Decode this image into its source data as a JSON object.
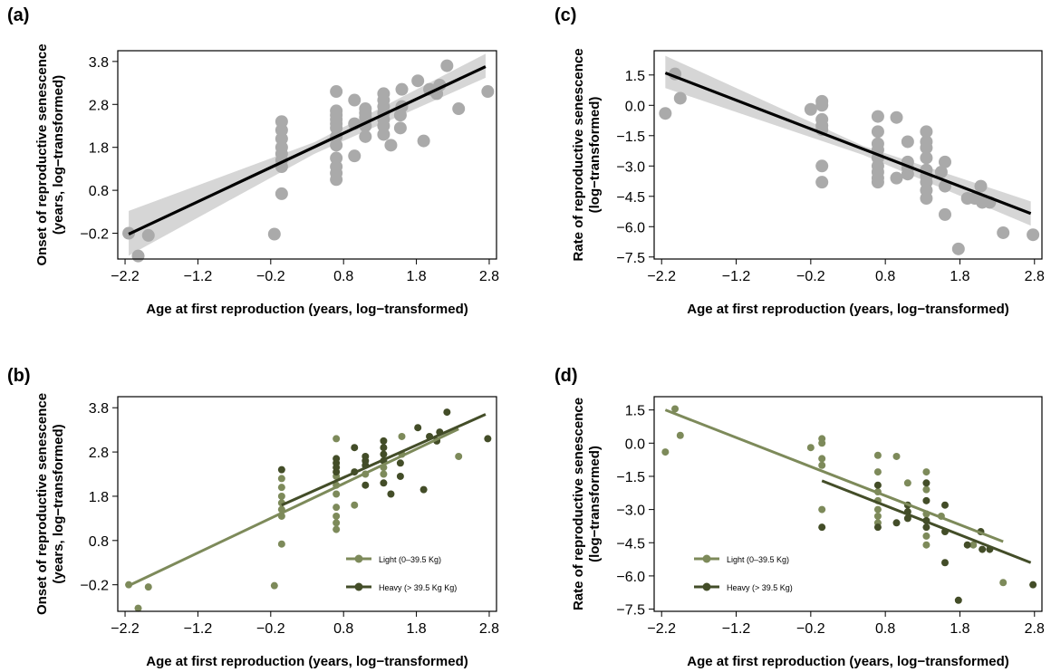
{
  "chart_data": [
    {
      "panel": "(a)",
      "type": "scatter",
      "xlabel": "Age at first reproduction (years, log−transformed)",
      "ylabel": [
        "Onset of reproductive senescence",
        "(years, log−transformed)"
      ],
      "xticks": [
        "−2.2",
        "−1.2",
        "−0.2",
        "0.8",
        "1.8",
        "2.8"
      ],
      "yticks": [
        "−0.2",
        "0.8",
        "1.8",
        "2.8",
        "3.8"
      ],
      "xlim": [
        -2.3,
        2.9
      ],
      "ylim": [
        -0.8,
        4.05
      ],
      "point_color": "#aaaaaa",
      "line_color": "#000000",
      "band_color": "#d6d6d6",
      "points": [
        [
          -2.15,
          -0.2
        ],
        [
          -2.02,
          -0.73
        ],
        [
          -1.88,
          -0.25
        ],
        [
          -0.15,
          -0.22
        ],
        [
          -0.05,
          0.72
        ],
        [
          -0.05,
          1.35
        ],
        [
          -0.05,
          1.5
        ],
        [
          -0.05,
          1.65
        ],
        [
          -0.05,
          1.8
        ],
        [
          -0.05,
          2.0
        ],
        [
          -0.05,
          2.2
        ],
        [
          -0.05,
          2.4
        ],
        [
          0.7,
          1.05
        ],
        [
          0.7,
          1.2
        ],
        [
          0.7,
          1.35
        ],
        [
          0.7,
          1.55
        ],
        [
          0.7,
          1.85
        ],
        [
          0.7,
          2.05
        ],
        [
          0.7,
          2.25
        ],
        [
          0.7,
          2.35
        ],
        [
          0.7,
          2.45
        ],
        [
          0.7,
          2.55
        ],
        [
          0.7,
          2.65
        ],
        [
          0.7,
          3.1
        ],
        [
          0.95,
          1.6
        ],
        [
          0.95,
          2.35
        ],
        [
          0.95,
          2.9
        ],
        [
          1.1,
          2.05
        ],
        [
          1.1,
          2.3
        ],
        [
          1.1,
          2.5
        ],
        [
          1.1,
          2.6
        ],
        [
          1.1,
          2.7
        ],
        [
          1.35,
          2.1
        ],
        [
          1.35,
          2.3
        ],
        [
          1.35,
          2.45
        ],
        [
          1.35,
          2.6
        ],
        [
          1.35,
          2.75
        ],
        [
          1.35,
          2.9
        ],
        [
          1.35,
          3.05
        ],
        [
          1.45,
          1.85
        ],
        [
          1.58,
          2.25
        ],
        [
          1.58,
          2.55
        ],
        [
          1.6,
          2.75
        ],
        [
          1.6,
          3.15
        ],
        [
          1.82,
          3.35
        ],
        [
          1.9,
          1.95
        ],
        [
          1.98,
          3.15
        ],
        [
          2.08,
          3.05
        ],
        [
          2.12,
          3.25
        ],
        [
          2.22,
          3.7
        ],
        [
          2.38,
          2.7
        ],
        [
          2.78,
          3.1
        ]
      ],
      "fit_line": [
        [
          -2.15,
          -0.22
        ],
        [
          2.75,
          3.68
        ]
      ],
      "ci_band": {
        "x": [
          -2.15,
          0.4,
          2.75
        ],
        "lower": [
          -0.72,
          1.65,
          3.42
        ],
        "upper": [
          0.32,
          1.92,
          3.98
        ]
      }
    },
    {
      "panel": "(b)",
      "type": "scatter",
      "xlabel": "Age at first reproduction (years, log−transformed)",
      "ylabel": [
        "Onset of reproductive senescence",
        "(years, log−transformed)"
      ],
      "xticks": [
        "−2.2",
        "−1.2",
        "−0.2",
        "0.8",
        "1.8",
        "2.8"
      ],
      "yticks": [
        "−0.2",
        "0.8",
        "1.8",
        "2.8",
        "3.8"
      ],
      "xlim": [
        -2.3,
        2.9
      ],
      "ylim": [
        -0.8,
        4.05
      ],
      "legend_position": "bottom-right",
      "series": [
        {
          "name": "Light (0–39.5 Kg)",
          "color": "#7d8a5a",
          "points": [
            [
              -2.15,
              -0.2
            ],
            [
              -2.02,
              -0.73
            ],
            [
              -1.88,
              -0.25
            ],
            [
              -0.15,
              -0.22
            ],
            [
              -0.05,
              0.72
            ],
            [
              -0.05,
              1.35
            ],
            [
              -0.05,
              1.5
            ],
            [
              -0.05,
              1.65
            ],
            [
              -0.05,
              1.8
            ],
            [
              -0.05,
              2.0
            ],
            [
              -0.05,
              2.2
            ],
            [
              0.7,
              1.05
            ],
            [
              0.7,
              1.2
            ],
            [
              0.7,
              1.35
            ],
            [
              0.7,
              1.55
            ],
            [
              0.7,
              1.85
            ],
            [
              0.7,
              2.05
            ],
            [
              0.7,
              2.25
            ],
            [
              0.7,
              3.1
            ],
            [
              0.95,
              1.6
            ],
            [
              1.1,
              2.3
            ],
            [
              1.35,
              2.3
            ],
            [
              1.35,
              2.45
            ],
            [
              1.6,
              2.75
            ],
            [
              1.6,
              3.15
            ],
            [
              2.38,
              2.7
            ]
          ],
          "fit_line": [
            [
              -2.15,
              -0.22
            ],
            [
              2.38,
              3.32
            ]
          ]
        },
        {
          "name": "Heavy (> 39.5 Kg Kg)",
          "color": "#434d28",
          "points": [
            [
              -0.05,
              2.4
            ],
            [
              0.7,
              2.35
            ],
            [
              0.7,
              2.45
            ],
            [
              0.7,
              2.55
            ],
            [
              0.7,
              2.65
            ],
            [
              0.95,
              2.35
            ],
            [
              0.95,
              2.9
            ],
            [
              1.1,
              2.05
            ],
            [
              1.1,
              2.5
            ],
            [
              1.1,
              2.6
            ],
            [
              1.1,
              2.7
            ],
            [
              1.35,
              2.1
            ],
            [
              1.35,
              2.6
            ],
            [
              1.35,
              2.75
            ],
            [
              1.35,
              2.9
            ],
            [
              1.35,
              3.05
            ],
            [
              1.45,
              1.85
            ],
            [
              1.58,
              2.25
            ],
            [
              1.58,
              2.55
            ],
            [
              1.82,
              3.35
            ],
            [
              1.9,
              1.95
            ],
            [
              1.98,
              3.15
            ],
            [
              2.08,
              3.05
            ],
            [
              2.12,
              3.25
            ],
            [
              2.22,
              3.7
            ],
            [
              2.78,
              3.1
            ]
          ],
          "fit_line": [
            [
              -0.05,
              1.6
            ],
            [
              2.75,
              3.65
            ]
          ]
        }
      ]
    },
    {
      "panel": "(c)",
      "type": "scatter",
      "xlabel": "Age at first reproduction (years, log−transformed)",
      "ylabel": [
        "Rate of reproductive senescence",
        "(log−transformed)"
      ],
      "xticks": [
        "−2.2",
        "−1.2",
        "−0.2",
        "0.8",
        "1.8",
        "2.8"
      ],
      "yticks": [
        "−7.5",
        "−6.0",
        "−4.5",
        "−3.0",
        "−1.5",
        "0.0",
        "1.5"
      ],
      "xlim": [
        -2.3,
        2.9
      ],
      "ylim": [
        -7.6,
        2.7
      ],
      "point_color": "#aaaaaa",
      "line_color": "#000000",
      "band_color": "#d6d6d6",
      "points": [
        [
          -2.15,
          -0.4
        ],
        [
          -2.02,
          1.55
        ],
        [
          -1.95,
          0.35
        ],
        [
          -0.2,
          -0.2
        ],
        [
          -0.05,
          -0.7
        ],
        [
          -0.05,
          -1.0
        ],
        [
          -0.05,
          -1.2
        ],
        [
          -0.05,
          0.0
        ],
        [
          -0.05,
          0.2
        ],
        [
          -0.05,
          -3.0
        ],
        [
          -0.05,
          -3.8
        ],
        [
          0.7,
          -0.55
        ],
        [
          0.7,
          -1.3
        ],
        [
          0.7,
          -1.9
        ],
        [
          0.7,
          -2.2
        ],
        [
          0.7,
          -2.6
        ],
        [
          0.7,
          -3.0
        ],
        [
          0.7,
          -3.3
        ],
        [
          0.7,
          -3.6
        ],
        [
          0.7,
          -3.8
        ],
        [
          0.95,
          -0.6
        ],
        [
          0.95,
          -3.6
        ],
        [
          1.1,
          -1.8
        ],
        [
          1.1,
          -2.8
        ],
        [
          1.1,
          -3.1
        ],
        [
          1.1,
          -3.4
        ],
        [
          1.35,
          -1.3
        ],
        [
          1.35,
          -1.8
        ],
        [
          1.35,
          -2.1
        ],
        [
          1.35,
          -2.6
        ],
        [
          1.35,
          -3.2
        ],
        [
          1.35,
          -3.5
        ],
        [
          1.35,
          -3.8
        ],
        [
          1.35,
          -4.2
        ],
        [
          1.35,
          -4.6
        ],
        [
          1.55,
          -3.3
        ],
        [
          1.6,
          -2.8
        ],
        [
          1.6,
          -4.0
        ],
        [
          1.6,
          -5.4
        ],
        [
          1.78,
          -7.1
        ],
        [
          1.9,
          -4.6
        ],
        [
          2.0,
          -4.6
        ],
        [
          2.08,
          -4.0
        ],
        [
          2.1,
          -4.8
        ],
        [
          2.2,
          -4.8
        ],
        [
          2.38,
          -6.3
        ],
        [
          2.78,
          -6.4
        ]
      ],
      "fit_line": [
        [
          -2.15,
          1.6
        ],
        [
          2.75,
          -5.35
        ]
      ],
      "ci_band": {
        "x": [
          -2.15,
          0.5,
          2.75
        ],
        "lower": [
          0.85,
          -2.45,
          -5.95
        ],
        "upper": [
          2.45,
          -2.0,
          -4.75
        ]
      }
    },
    {
      "panel": "(d)",
      "type": "scatter",
      "xlabel": "Age at first reproduction (years, log−transformed)",
      "ylabel": [
        "Rate of reproductive senescence",
        "(log−transformed)"
      ],
      "xticks": [
        "−2.2",
        "−1.2",
        "−0.2",
        "0.8",
        "1.8",
        "2.8"
      ],
      "yticks": [
        "−7.5",
        "−6.0",
        "−4.5",
        "−3.0",
        "−1.5",
        "0.0",
        "1.5"
      ],
      "xlim": [
        -2.3,
        2.9
      ],
      "ylim": [
        -7.6,
        2.1
      ],
      "legend_position": "bottom-left",
      "series": [
        {
          "name": "Light (0–39.5 Kg)",
          "color": "#7d8a5a",
          "points": [
            [
              -2.15,
              -0.4
            ],
            [
              -2.02,
              1.55
            ],
            [
              -1.95,
              0.35
            ],
            [
              -0.2,
              -0.2
            ],
            [
              -0.05,
              -0.7
            ],
            [
              -0.05,
              -1.0
            ],
            [
              -0.05,
              0.0
            ],
            [
              -0.05,
              0.2
            ],
            [
              -0.05,
              -3.0
            ],
            [
              0.7,
              -0.55
            ],
            [
              0.7,
              -1.3
            ],
            [
              0.7,
              -2.2
            ],
            [
              0.7,
              -2.6
            ],
            [
              0.7,
              -3.0
            ],
            [
              0.7,
              -3.3
            ],
            [
              0.7,
              -3.6
            ],
            [
              0.95,
              -0.6
            ],
            [
              1.1,
              -1.8
            ],
            [
              1.35,
              -1.3
            ],
            [
              1.35,
              -2.1
            ],
            [
              1.35,
              -3.2
            ],
            [
              1.35,
              -4.2
            ],
            [
              1.35,
              -4.6
            ],
            [
              1.55,
              -3.3
            ],
            [
              1.98,
              -4.6
            ],
            [
              2.38,
              -6.3
            ]
          ],
          "fit_line": [
            [
              -2.15,
              1.5
            ],
            [
              2.38,
              -4.45
            ]
          ]
        },
        {
          "name": "Heavy (> 39.5 Kg)",
          "color": "#434d28",
          "points": [
            [
              -0.05,
              -3.8
            ],
            [
              0.7,
              -1.9
            ],
            [
              0.7,
              -3.8
            ],
            [
              0.95,
              -3.6
            ],
            [
              1.1,
              -2.8
            ],
            [
              1.1,
              -3.1
            ],
            [
              1.1,
              -3.4
            ],
            [
              1.35,
              -1.8
            ],
            [
              1.35,
              -2.6
            ],
            [
              1.35,
              -3.5
            ],
            [
              1.35,
              -3.8
            ],
            [
              1.6,
              -2.8
            ],
            [
              1.6,
              -4.0
            ],
            [
              1.6,
              -5.4
            ],
            [
              1.78,
              -7.1
            ],
            [
              1.9,
              -4.6
            ],
            [
              2.08,
              -4.0
            ],
            [
              2.1,
              -4.8
            ],
            [
              2.2,
              -4.8
            ],
            [
              2.78,
              -6.4
            ]
          ],
          "fit_line": [
            [
              -0.05,
              -1.7
            ],
            [
              2.75,
              -5.4
            ]
          ]
        }
      ]
    }
  ]
}
